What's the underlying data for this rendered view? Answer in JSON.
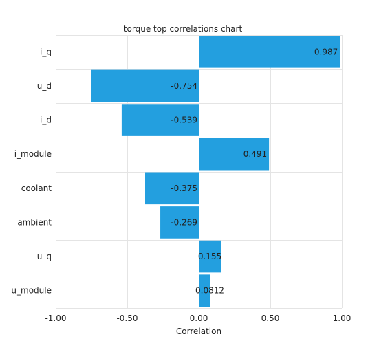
{
  "chart_data": {
    "type": "bar",
    "orientation": "horizontal",
    "title": "torque top correlations chart",
    "xlabel": "Correlation",
    "ylabel": "",
    "xlim": [
      -1.0,
      1.0
    ],
    "x_ticks": [
      "-1.00",
      "-0.50",
      "0.00",
      "0.50",
      "1.00"
    ],
    "x_tick_values": [
      -1.0,
      -0.5,
      0.0,
      0.5,
      1.0
    ],
    "grid": true,
    "bar_color": "#239FDF",
    "categories": [
      "i_q",
      "u_d",
      "i_d",
      "i_module",
      "coolant",
      "ambient",
      "u_q",
      "u_module"
    ],
    "values": [
      0.987,
      -0.754,
      -0.539,
      0.491,
      -0.375,
      -0.269,
      0.155,
      0.0812
    ],
    "data_labels": [
      "0.987",
      "-0.754",
      "-0.539",
      "0.491",
      "-0.375",
      "-0.269",
      "0.155",
      "0.0812"
    ]
  }
}
